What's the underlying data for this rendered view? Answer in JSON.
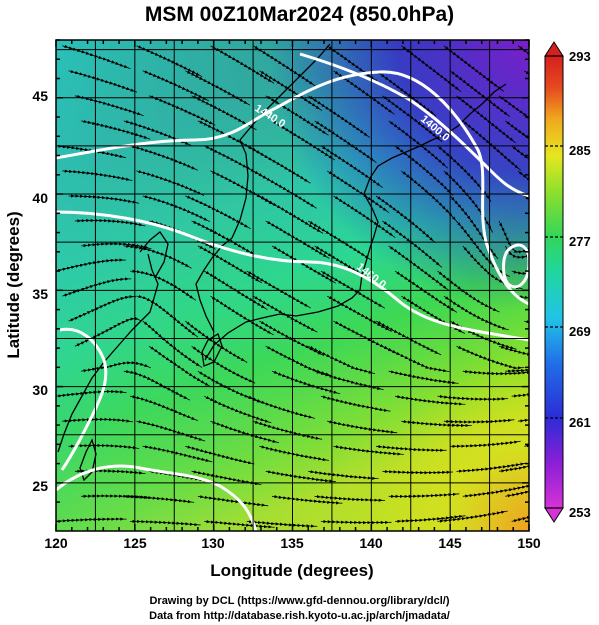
{
  "title": "MSM 00Z10Mar2024 (850.0hPa)",
  "x_axis": {
    "label": "Longitude (degrees)",
    "ticks": [
      "120",
      "125",
      "130",
      "135",
      "140",
      "145",
      "150"
    ],
    "range": [
      120,
      150
    ]
  },
  "y_axis": {
    "label": "Latitude  (degrees)",
    "ticks": [
      "25",
      "30",
      "35",
      "40",
      "45"
    ],
    "range": [
      22.5,
      48
    ]
  },
  "colorbar": {
    "ticks": [
      "253",
      "261",
      "269",
      "277",
      "285",
      "293"
    ],
    "range": [
      253,
      293
    ],
    "colors": [
      "#d633d6",
      "#8a1fd6",
      "#2c2cd6",
      "#1f6fe8",
      "#22c3e6",
      "#1fd6a0",
      "#33d65a",
      "#8ee02c",
      "#e6e61f",
      "#f0a81f",
      "#e64a1f",
      "#d61f1f"
    ]
  },
  "contours": [
    {
      "label": "1440.0"
    },
    {
      "label": "1400.0"
    },
    {
      "label": "1460.0"
    }
  ],
  "footer": {
    "line1": "Drawing by DCL (https://www.gfd-dennou.org/library/dcl/)",
    "line2": "Data from http://database.rish.kyoto-u.ac.jp/arch/jmadata/"
  }
}
